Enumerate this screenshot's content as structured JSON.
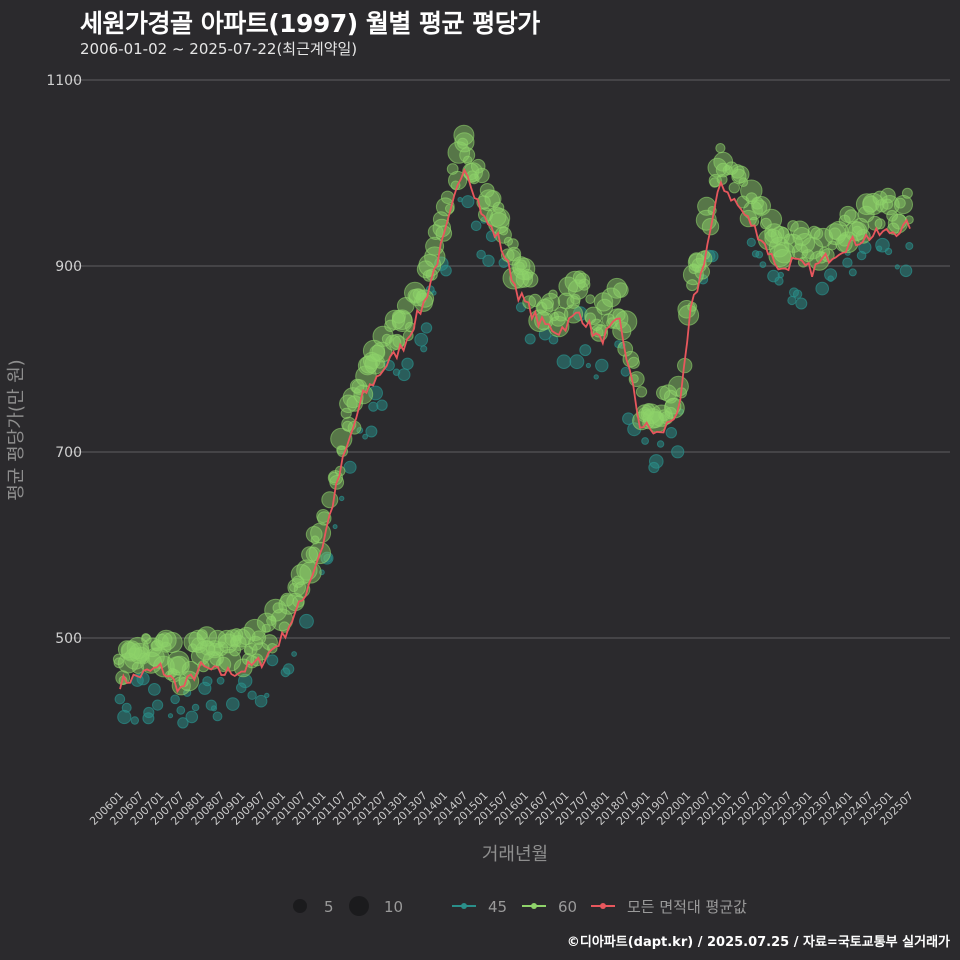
{
  "chart_data": {
    "type": "scatter",
    "title": "세원가경골 아파트(1997) 월별 평균 평당가",
    "subtitle": "2006-01-02 ~ 2025-07-22(최근계약일)",
    "xlabel": "거래년월",
    "ylabel": "평균 평당가(만 원)",
    "ylim": [
      370,
      1100
    ],
    "yticks": [
      500,
      700,
      900,
      1100
    ],
    "xlim": [
      "2006-01",
      "2025-07"
    ],
    "xticks": [
      "200601",
      "200607",
      "200701",
      "200707",
      "200801",
      "200807",
      "200901",
      "200907",
      "201001",
      "201007",
      "201101",
      "201107",
      "201201",
      "201207",
      "201301",
      "201307",
      "201401",
      "201407",
      "201501",
      "201507",
      "201601",
      "201607",
      "201701",
      "201707",
      "201801",
      "201807",
      "201901",
      "201907",
      "202001",
      "202007",
      "202101",
      "202107",
      "202201",
      "202207",
      "202301",
      "202307",
      "202401",
      "202407",
      "202501",
      "202507"
    ],
    "grid": true,
    "legend": {
      "position": "bottom",
      "size_entries": [
        "5",
        "10"
      ],
      "series_entries": [
        "45",
        "60",
        "모든 면적대 평균값"
      ]
    },
    "colors": {
      "s45": "#2a8f8a",
      "s60": "#8fd36a",
      "avg": "#e8575d",
      "grid": "#5f5e61"
    },
    "avg_anchors": {
      "months": [
        0,
        6,
        12,
        18,
        24,
        30,
        36,
        42,
        48,
        54,
        60,
        66,
        72,
        78,
        84,
        90,
        96,
        102,
        108,
        112,
        118,
        124,
        130,
        136,
        142,
        148,
        154,
        160,
        166,
        169,
        172,
        178,
        184,
        190,
        193,
        196,
        199,
        202,
        205,
        208,
        214,
        220,
        226,
        232,
        234
      ],
      "values": [
        452,
        460,
        468,
        445,
        468,
        462,
        465,
        475,
        500,
        540,
        600,
        690,
        760,
        790,
        815,
        860,
        930,
        1010,
        950,
        930,
        870,
        840,
        830,
        850,
        820,
        840,
        730,
        718,
        750,
        850,
        890,
        990,
        960,
        930,
        910,
        895,
        905,
        900,
        895,
        905,
        920,
        930,
        935,
        940,
        945
      ]
    }
  },
  "footer": "©디아파트(dapt.kr) / 2025.07.25 / 자료=국토교통부 실거래가"
}
